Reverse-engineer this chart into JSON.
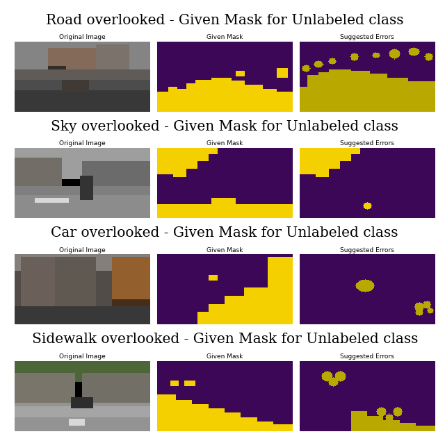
{
  "bg_color": "#ffffff",
  "purple": "#3d0758",
  "yellow": "#f5d000",
  "dark_yellow": "#b8a800",
  "row_titles": [
    "Road overlooked - Given Mask for Unlabeled class",
    "Sky overlooked - Given Mask for Unlabeled class",
    "Car overlooked - Given Mask for Unlabeled class",
    "Sidewalk overlooked - Given Mask for Unlabeled class"
  ],
  "col_subtitles": [
    "Original Image",
    "Given Mask",
    "Suggested Errors"
  ],
  "title_fontsize": 14.5,
  "subtitle_fontsize": 6.5,
  "figsize": [
    6.4,
    6.25
  ],
  "dpi": 100
}
